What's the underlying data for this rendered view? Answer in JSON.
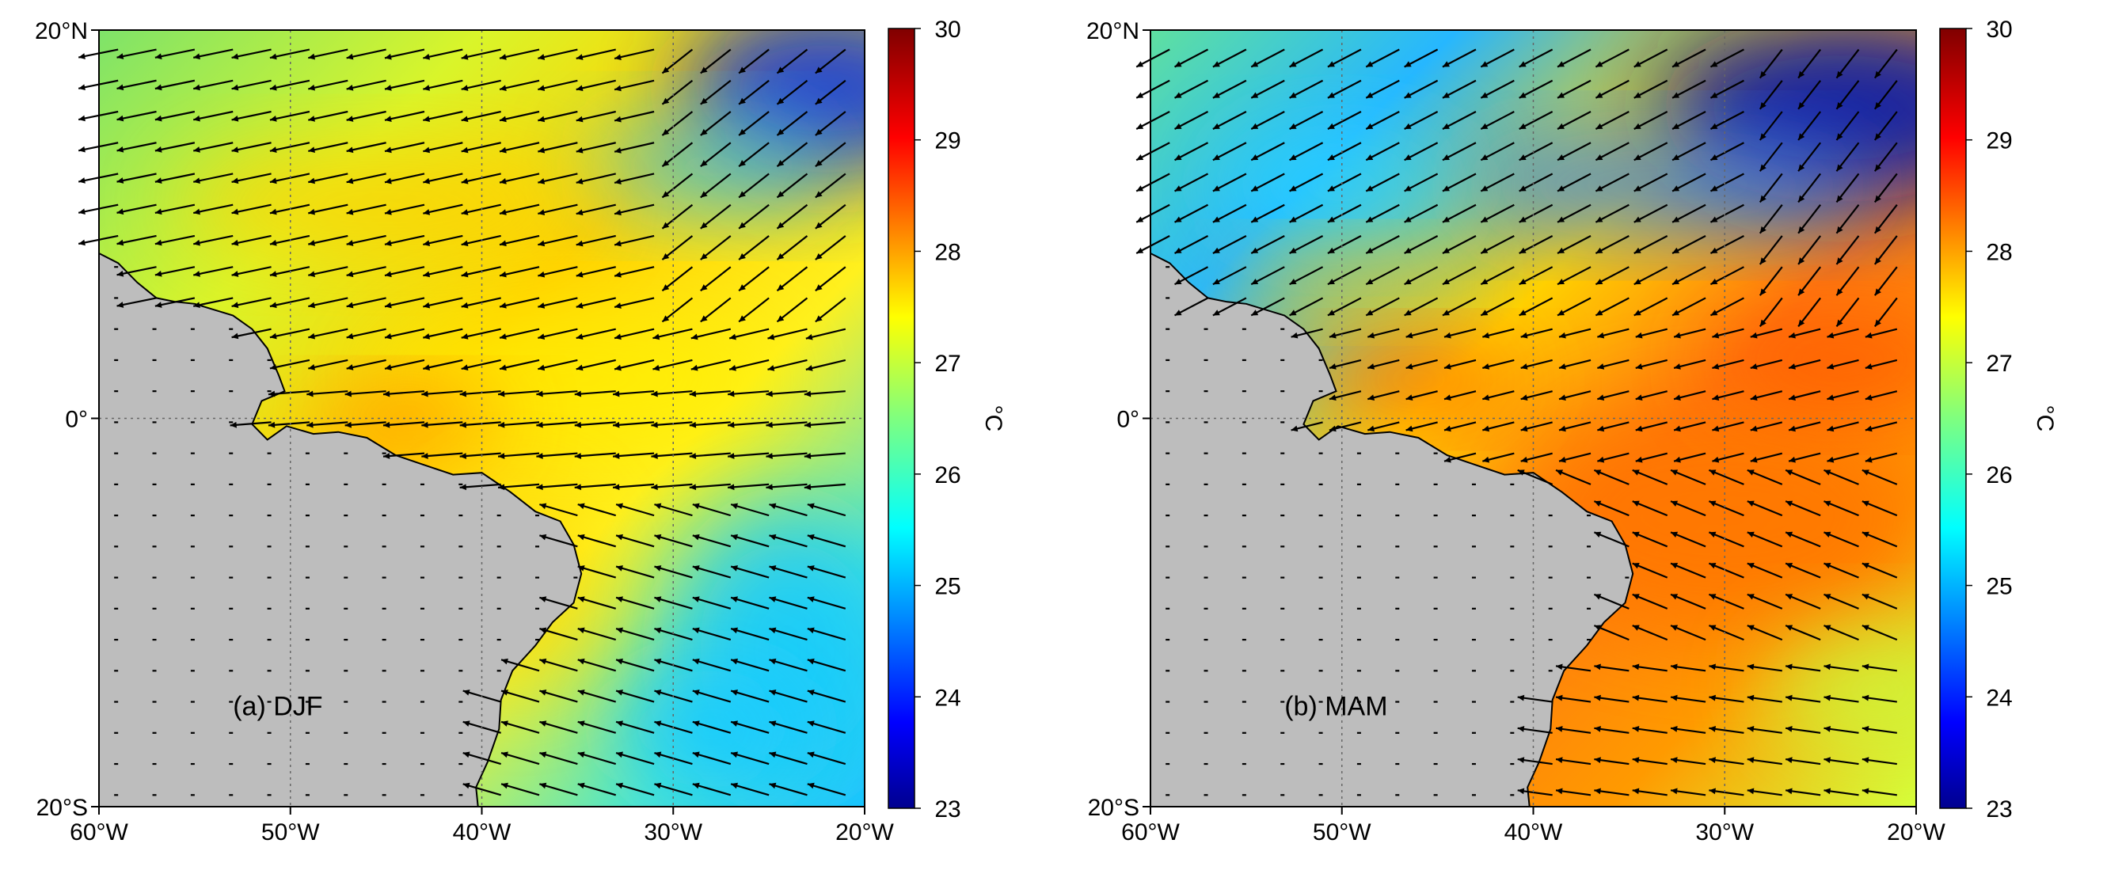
{
  "panels": [
    {
      "id": "djf",
      "label": "(a) DJF",
      "season": "DJF",
      "warm_zone": "north-of-equator and along coast",
      "colors": {
        "north": "#1b3fd6",
        "mid": "#ffd800",
        "coast": "#ff8a00",
        "south": "#19c9ff"
      }
    },
    {
      "id": "mam",
      "label": "(b) MAM",
      "season": "MAM",
      "warm_zone": "equatorial band and southeast of coast",
      "colors": {
        "north": "#0a1fa8",
        "mid": "#ff9500",
        "coast": "#ff6a00",
        "south": "#b8ff3a"
      }
    }
  ],
  "axes": {
    "x_ticks": [
      "60°W",
      "50°W",
      "40°W",
      "30°W",
      "20°W"
    ],
    "x_range": [
      -60,
      -20
    ],
    "y_ticks": [
      "20°N",
      "0°",
      "20°S"
    ],
    "y_range": [
      -20,
      20
    ],
    "grid": true,
    "grid_style": "dotted"
  },
  "colorbar": {
    "ticks": [
      "23",
      "24",
      "25",
      "26",
      "27",
      "28",
      "29",
      "30"
    ],
    "range": [
      23,
      30
    ],
    "unit": "°C",
    "colormap": "jet"
  },
  "land_color": "#bdbdbd",
  "vectors": {
    "color": "#000000",
    "description": "wind stress arrows"
  }
}
